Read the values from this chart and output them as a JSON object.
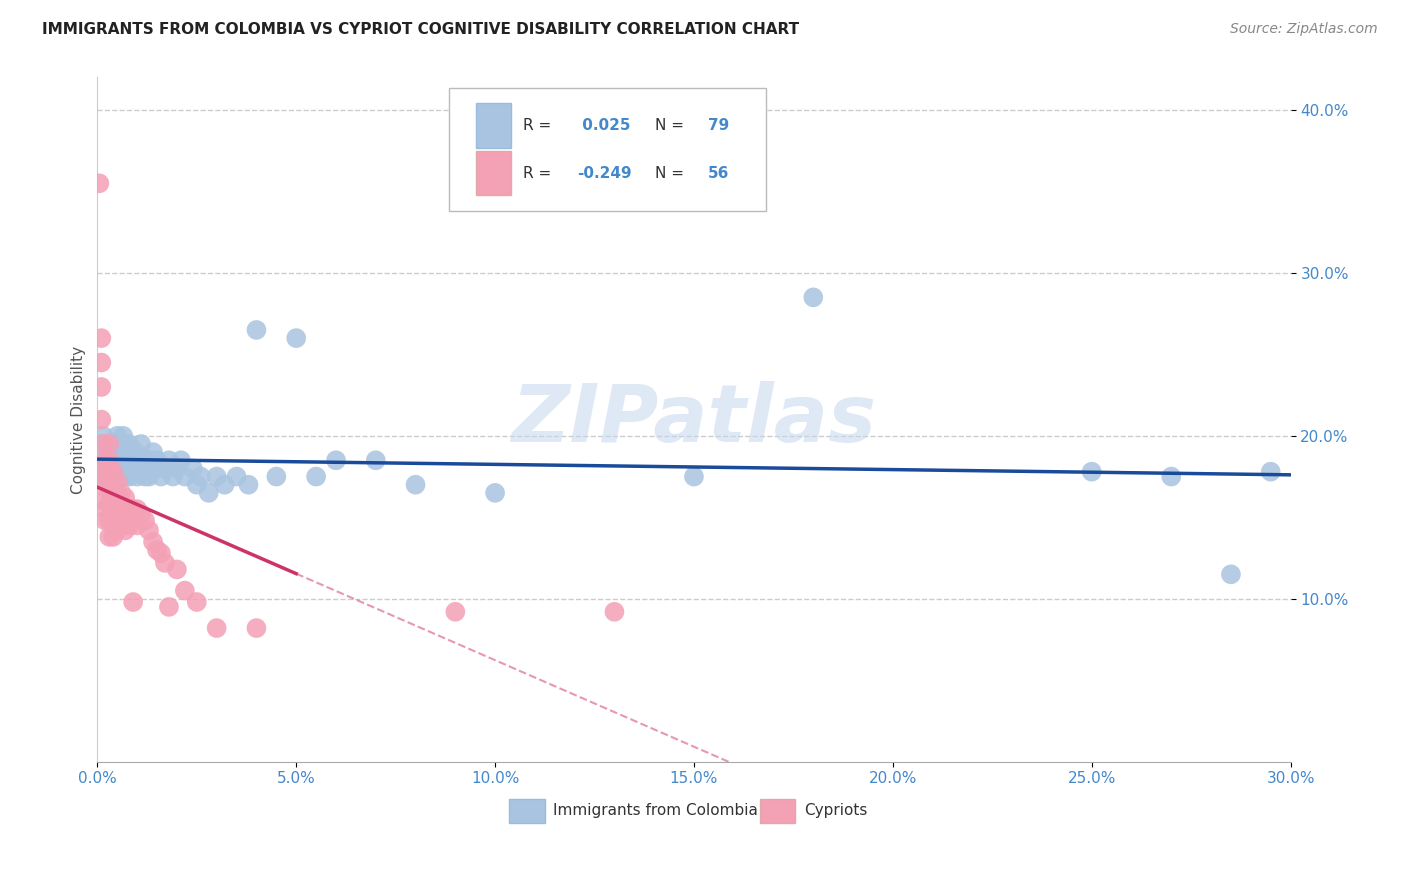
{
  "title": "IMMIGRANTS FROM COLOMBIA VS CYPRIOT COGNITIVE DISABILITY CORRELATION CHART",
  "source": "Source: ZipAtlas.com",
  "ylabel": "Cognitive Disability",
  "legend_labels": [
    "Immigrants from Colombia",
    "Cypriots"
  ],
  "blue_R": 0.025,
  "blue_N": 79,
  "pink_R": -0.249,
  "pink_N": 56,
  "blue_color": "#a8c4e0",
  "pink_color": "#f4a0b5",
  "blue_line_color": "#1a4a9a",
  "pink_line_color": "#cc3366",
  "title_color": "#222222",
  "source_color": "#888888",
  "axis_label_color": "#555555",
  "tick_color": "#4488cc",
  "watermark": "ZIPatlas",
  "xlim": [
    0.0,
    0.3
  ],
  "ylim": [
    0.0,
    0.42
  ],
  "xticks": [
    0.0,
    0.05,
    0.1,
    0.15,
    0.2,
    0.25,
    0.3
  ],
  "yticks": [
    0.1,
    0.2,
    0.3,
    0.4
  ],
  "blue_x": [
    0.0008,
    0.001,
    0.0012,
    0.0014,
    0.0015,
    0.0018,
    0.002,
    0.002,
    0.0022,
    0.0025,
    0.003,
    0.003,
    0.003,
    0.0032,
    0.0035,
    0.004,
    0.004,
    0.0042,
    0.0045,
    0.005,
    0.005,
    0.005,
    0.0052,
    0.0055,
    0.006,
    0.006,
    0.006,
    0.0062,
    0.0065,
    0.007,
    0.007,
    0.0072,
    0.0075,
    0.008,
    0.008,
    0.0082,
    0.009,
    0.009,
    0.0095,
    0.01,
    0.01,
    0.011,
    0.011,
    0.012,
    0.012,
    0.013,
    0.013,
    0.014,
    0.015,
    0.015,
    0.016,
    0.017,
    0.018,
    0.019,
    0.02,
    0.021,
    0.022,
    0.024,
    0.025,
    0.026,
    0.028,
    0.03,
    0.032,
    0.035,
    0.038,
    0.04,
    0.045,
    0.05,
    0.055,
    0.06,
    0.07,
    0.08,
    0.1,
    0.15,
    0.18,
    0.25,
    0.27,
    0.285,
    0.295
  ],
  "blue_y": [
    0.195,
    0.185,
    0.19,
    0.175,
    0.2,
    0.185,
    0.195,
    0.18,
    0.185,
    0.175,
    0.19,
    0.18,
    0.195,
    0.185,
    0.19,
    0.175,
    0.185,
    0.195,
    0.18,
    0.185,
    0.2,
    0.175,
    0.19,
    0.18,
    0.195,
    0.185,
    0.175,
    0.19,
    0.2,
    0.185,
    0.175,
    0.19,
    0.18,
    0.185,
    0.195,
    0.175,
    0.185,
    0.18,
    0.19,
    0.185,
    0.175,
    0.185,
    0.195,
    0.18,
    0.175,
    0.185,
    0.175,
    0.19,
    0.18,
    0.185,
    0.175,
    0.18,
    0.185,
    0.175,
    0.18,
    0.185,
    0.175,
    0.18,
    0.17,
    0.175,
    0.165,
    0.175,
    0.17,
    0.175,
    0.17,
    0.265,
    0.175,
    0.26,
    0.175,
    0.185,
    0.185,
    0.17,
    0.165,
    0.175,
    0.285,
    0.178,
    0.175,
    0.115,
    0.178
  ],
  "pink_x": [
    0.0005,
    0.001,
    0.001,
    0.001,
    0.001,
    0.0015,
    0.002,
    0.002,
    0.002,
    0.002,
    0.002,
    0.002,
    0.002,
    0.003,
    0.003,
    0.003,
    0.003,
    0.003,
    0.003,
    0.003,
    0.004,
    0.004,
    0.004,
    0.004,
    0.004,
    0.005,
    0.005,
    0.005,
    0.005,
    0.006,
    0.006,
    0.006,
    0.007,
    0.007,
    0.007,
    0.008,
    0.008,
    0.009,
    0.009,
    0.01,
    0.01,
    0.011,
    0.012,
    0.013,
    0.014,
    0.015,
    0.016,
    0.017,
    0.018,
    0.02,
    0.022,
    0.025,
    0.03,
    0.04,
    0.09,
    0.13
  ],
  "pink_y": [
    0.355,
    0.26,
    0.245,
    0.23,
    0.21,
    0.195,
    0.185,
    0.18,
    0.175,
    0.168,
    0.16,
    0.155,
    0.148,
    0.195,
    0.185,
    0.178,
    0.168,
    0.158,
    0.148,
    0.138,
    0.178,
    0.168,
    0.158,
    0.148,
    0.138,
    0.172,
    0.162,
    0.152,
    0.142,
    0.165,
    0.155,
    0.145,
    0.162,
    0.152,
    0.142,
    0.155,
    0.145,
    0.155,
    0.098,
    0.155,
    0.145,
    0.152,
    0.148,
    0.142,
    0.135,
    0.13,
    0.128,
    0.122,
    0.095,
    0.118,
    0.105,
    0.098,
    0.082,
    0.082,
    0.092,
    0.092
  ]
}
